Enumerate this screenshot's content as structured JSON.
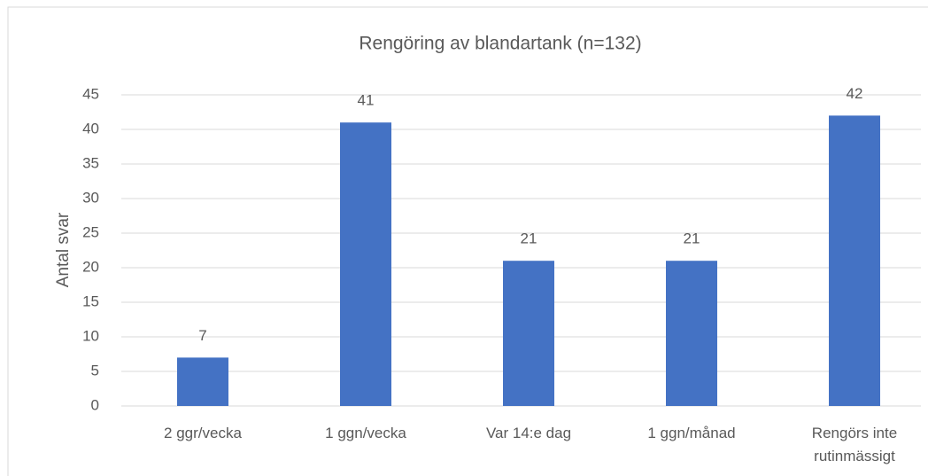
{
  "chart_data": {
    "type": "bar",
    "title": "Rengöring av blandartank (n=132)",
    "y_label": "Antal svar",
    "categories": [
      "2 ggr/vecka",
      "1 ggn/vecka",
      "Var 14:e dag",
      "1 ggn/månad",
      "Rengörs inte rutinmässigt"
    ],
    "values": [
      7,
      41,
      21,
      21,
      42
    ],
    "color": "#4472c4",
    "ylim": [
      0,
      45
    ],
    "yticks": [
      0,
      5,
      10,
      15,
      20,
      25,
      30,
      35,
      40,
      45
    ],
    "grid": true
  }
}
